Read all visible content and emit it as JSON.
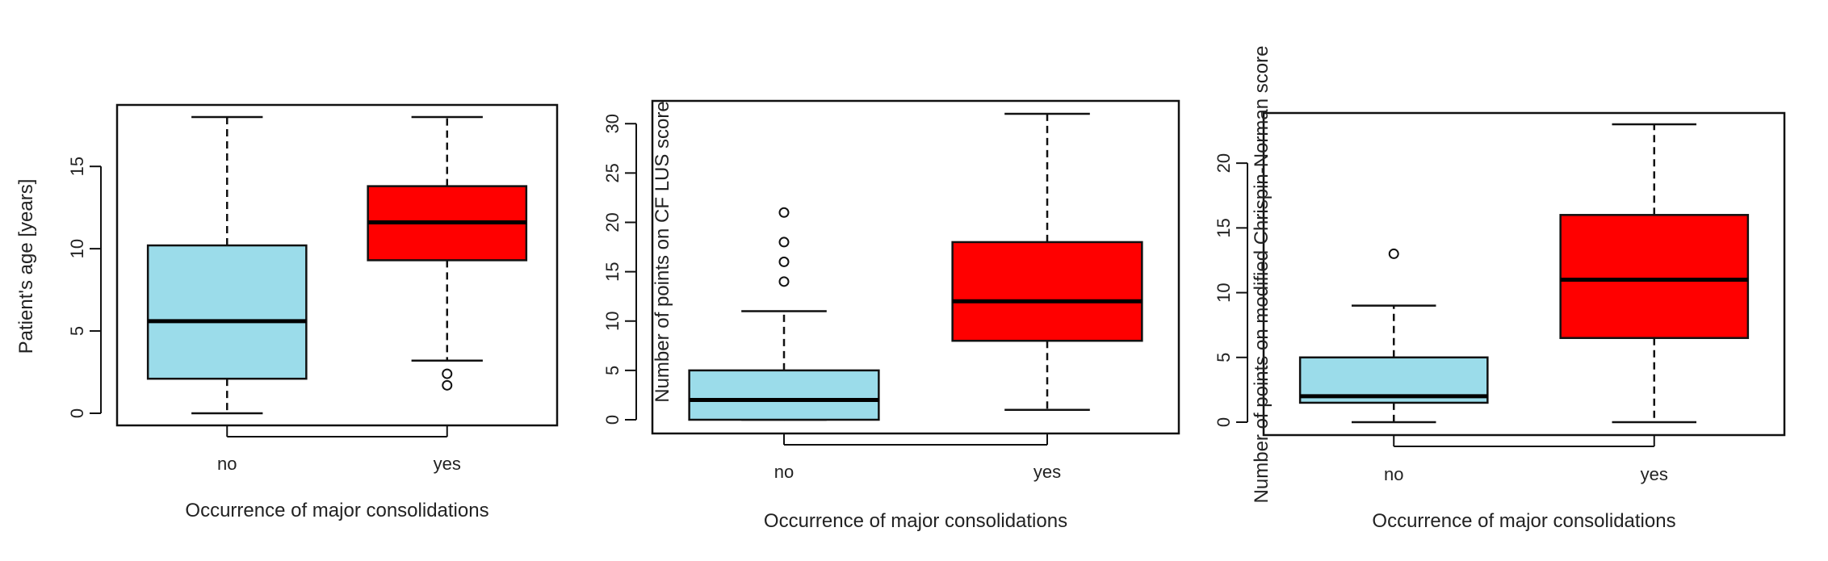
{
  "chart_data": [
    {
      "type": "boxplot",
      "xlabel": "Occurrence of major consolidations",
      "ylabel": "Patient's age [years]",
      "categories": [
        "no",
        "yes"
      ],
      "ylim": [
        0,
        18
      ],
      "yticks": [
        0,
        5,
        10,
        15
      ],
      "boxes": [
        {
          "name": "no",
          "color": "#9BDCEA",
          "whisker_low": 0,
          "q1": 2.1,
          "median": 5.6,
          "q3": 10.2,
          "whisker_high": 18,
          "outliers": []
        },
        {
          "name": "yes",
          "color": "#FF0000",
          "whisker_low": 3.2,
          "q1": 9.3,
          "median": 11.6,
          "q3": 13.8,
          "whisker_high": 18,
          "outliers": [
            2.4,
            1.7
          ]
        }
      ]
    },
    {
      "type": "boxplot",
      "xlabel": "Occurrence of major consolidations",
      "ylabel": "Number of points on CF LUS score",
      "categories": [
        "no",
        "yes"
      ],
      "ylim": [
        0,
        31
      ],
      "yticks": [
        0,
        5,
        10,
        15,
        20,
        25,
        30
      ],
      "boxes": [
        {
          "name": "no",
          "color": "#9BDCEA",
          "whisker_low": 0,
          "q1": 0,
          "median": 2,
          "q3": 5,
          "whisker_high": 11,
          "outliers": [
            14,
            16,
            18,
            21
          ]
        },
        {
          "name": "yes",
          "color": "#FF0000",
          "whisker_low": 1,
          "q1": 8,
          "median": 12,
          "q3": 18,
          "whisker_high": 31,
          "outliers": []
        }
      ]
    },
    {
      "type": "boxplot",
      "xlabel": "Occurrence of major consolidations",
      "ylabel": "Number of points on modified Chrispin-Norman score",
      "categories": [
        "no",
        "yes"
      ],
      "ylim": [
        0,
        23
      ],
      "yticks": [
        0,
        5,
        10,
        15,
        20
      ],
      "boxes": [
        {
          "name": "no",
          "color": "#9BDCEA",
          "whisker_low": 0,
          "q1": 1.5,
          "median": 2,
          "q3": 5,
          "whisker_high": 9,
          "outliers": [
            13
          ]
        },
        {
          "name": "yes",
          "color": "#FF0000",
          "whisker_low": 0,
          "q1": 6.5,
          "median": 11,
          "q3": 16,
          "whisker_high": 23,
          "outliers": []
        }
      ]
    }
  ]
}
